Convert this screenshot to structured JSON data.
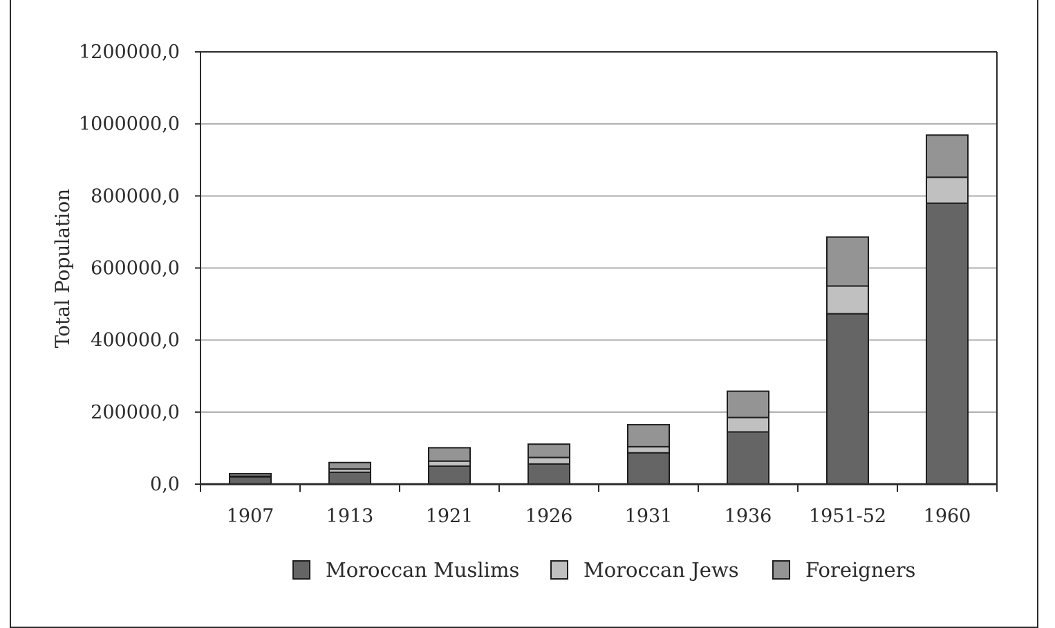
{
  "chart_data": {
    "type": "bar",
    "stacked": true,
    "title": "",
    "xlabel": "",
    "ylabel": "Total Population",
    "categories": [
      "1907",
      "1913",
      "1921",
      "1926",
      "1931",
      "1936",
      "1951-52",
      "1960"
    ],
    "ylim": [
      0,
      1200000
    ],
    "yticks": [
      "0,0",
      "200000,0",
      "400000,0",
      "600000,0",
      "800000,0",
      "1000000,0",
      "1200000,0"
    ],
    "grid": true,
    "legend_position": "bottom",
    "series": [
      {
        "name": "Moroccan Muslims",
        "color": "#656565",
        "values": [
          20000,
          33000,
          50000,
          56000,
          87000,
          145000,
          473000,
          780000
        ]
      },
      {
        "name": "Moroccan Jews",
        "color": "#c0c0c0",
        "values": [
          2000,
          9000,
          14000,
          18000,
          17000,
          40000,
          77000,
          72000
        ]
      },
      {
        "name": "Foreigners",
        "color": "#949494",
        "values": [
          7000,
          18000,
          37000,
          37000,
          61000,
          73000,
          136000,
          117000
        ]
      }
    ]
  }
}
